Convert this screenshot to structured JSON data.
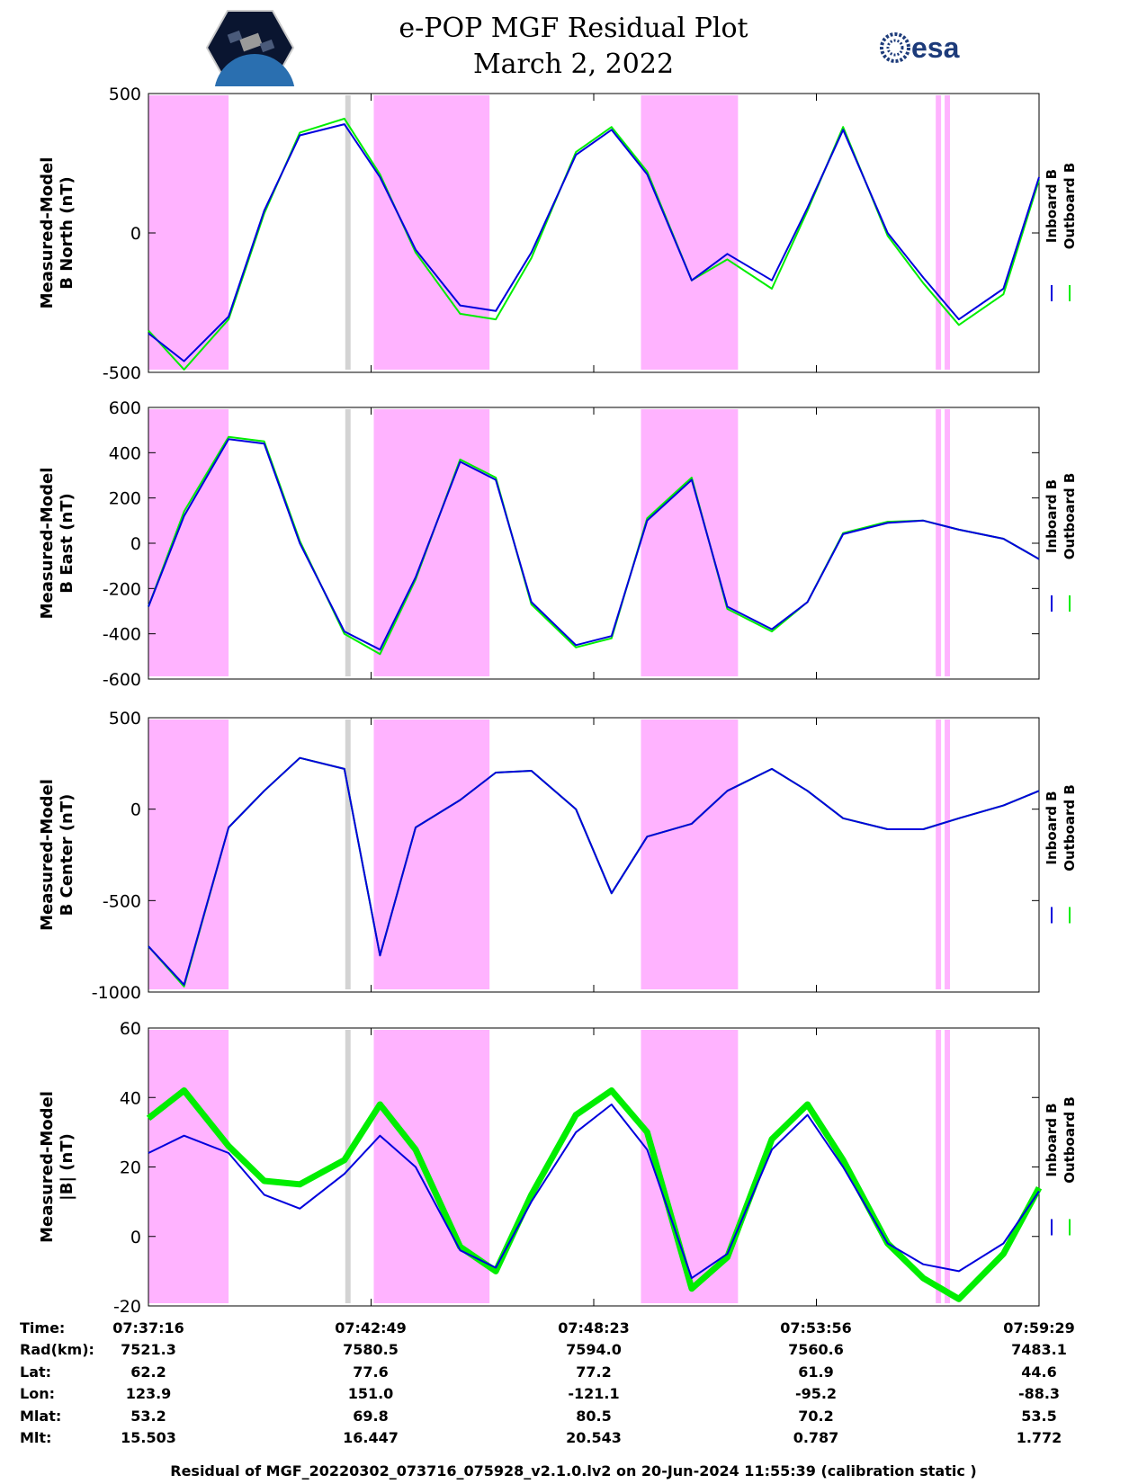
{
  "title": "e-POP MGF Residual Plot",
  "date": "March 2, 2022",
  "logos": {
    "left": "cassiope-mission-patch",
    "right_text": "esa"
  },
  "colors": {
    "inboard": "#0000dd",
    "outboard": "#00ee00",
    "shade_mag": "#ffb3ff",
    "shade_gray": "#d3d3d3"
  },
  "chart_data": [
    {
      "type": "line",
      "ylabel": [
        "Measured-Model",
        "B North (nT)"
      ],
      "ylim": [
        -500,
        500
      ],
      "yticks": [
        -500,
        0,
        500
      ],
      "legend": [
        "Inboard B",
        "Outboard B"
      ],
      "x": [
        0,
        0.04,
        0.09,
        0.13,
        0.17,
        0.22,
        0.26,
        0.3,
        0.35,
        0.39,
        0.43,
        0.48,
        0.52,
        0.56,
        0.61,
        0.65,
        0.7,
        0.74,
        0.78,
        0.83,
        0.87,
        0.91,
        0.96,
        1.0
      ],
      "series": [
        {
          "name": "Inboard B",
          "values": [
            -360,
            -460,
            -300,
            80,
            350,
            390,
            200,
            -60,
            -260,
            -280,
            -70,
            280,
            370,
            210,
            -170,
            -75,
            -170,
            90,
            370,
            0,
            -160,
            -310,
            -200,
            200
          ]
        },
        {
          "name": "Outboard B",
          "values": [
            -350,
            -490,
            -310,
            70,
            360,
            410,
            210,
            -70,
            -290,
            -310,
            -90,
            290,
            380,
            220,
            -170,
            -95,
            -200,
            80,
            380,
            -10,
            -180,
            -330,
            -220,
            190
          ]
        }
      ]
    },
    {
      "type": "line",
      "ylabel": [
        "Measured-Model",
        "B East (nT)"
      ],
      "ylim": [
        -600,
        600
      ],
      "yticks": [
        -600,
        -400,
        -200,
        0,
        200,
        400,
        600
      ],
      "legend": [
        "Inboard B",
        "Outboard B"
      ],
      "x": [
        0,
        0.04,
        0.09,
        0.13,
        0.17,
        0.22,
        0.26,
        0.3,
        0.35,
        0.39,
        0.43,
        0.48,
        0.52,
        0.56,
        0.61,
        0.65,
        0.7,
        0.74,
        0.78,
        0.83,
        0.87,
        0.91,
        0.96,
        1.0
      ],
      "series": [
        {
          "name": "Inboard B",
          "values": [
            -280,
            120,
            460,
            440,
            0,
            -390,
            -470,
            -150,
            360,
            280,
            -260,
            -450,
            -410,
            100,
            280,
            -280,
            -380,
            -260,
            40,
            90,
            100,
            60,
            20,
            -70
          ]
        },
        {
          "name": "Outboard B",
          "values": [
            -280,
            140,
            470,
            450,
            10,
            -400,
            -490,
            -160,
            370,
            290,
            -270,
            -460,
            -420,
            110,
            290,
            -290,
            -390,
            -260,
            45,
            95,
            100,
            60,
            20,
            -70
          ]
        }
      ]
    },
    {
      "type": "line",
      "ylabel": [
        "Measured-Model",
        "B Center (nT)"
      ],
      "ylim": [
        -1000,
        500
      ],
      "yticks": [
        -1000,
        -500,
        0,
        500
      ],
      "legend": [
        "Inboard B",
        "Outboard B"
      ],
      "x": [
        0,
        0.04,
        0.09,
        0.13,
        0.17,
        0.22,
        0.26,
        0.3,
        0.35,
        0.39,
        0.43,
        0.48,
        0.52,
        0.56,
        0.61,
        0.65,
        0.7,
        0.74,
        0.78,
        0.83,
        0.87,
        0.91,
        0.96,
        1.0
      ],
      "series": [
        {
          "name": "Inboard B",
          "values": [
            -750,
            -960,
            -100,
            100,
            280,
            220,
            -800,
            -100,
            50,
            200,
            210,
            0,
            -460,
            -150,
            -80,
            100,
            220,
            100,
            -50,
            -110,
            -110,
            -50,
            20,
            100
          ]
        },
        {
          "name": "Outboard B",
          "values": [
            -750,
            -970,
            -100,
            100,
            280,
            220,
            -800,
            -100,
            50,
            200,
            210,
            0,
            -460,
            -150,
            -80,
            100,
            220,
            100,
            -50,
            -110,
            -110,
            -50,
            20,
            100
          ]
        }
      ]
    },
    {
      "type": "line",
      "ylabel": [
        "Measured-Model",
        "|B| (nT)"
      ],
      "ylim": [
        -20,
        60
      ],
      "yticks": [
        -20,
        0,
        20,
        40,
        60
      ],
      "legend": [
        "Inboard B",
        "Outboard B"
      ],
      "x": [
        0,
        0.04,
        0.09,
        0.13,
        0.17,
        0.22,
        0.26,
        0.3,
        0.35,
        0.39,
        0.43,
        0.48,
        0.52,
        0.56,
        0.61,
        0.65,
        0.7,
        0.74,
        0.78,
        0.83,
        0.87,
        0.91,
        0.96,
        1.0
      ],
      "series": [
        {
          "name": "Inboard B",
          "values": [
            24,
            29,
            24,
            12,
            8,
            18,
            29,
            20,
            -4,
            -9,
            10,
            30,
            38,
            25,
            -12,
            -5,
            25,
            35,
            20,
            -2,
            -8,
            -10,
            -2,
            13
          ]
        },
        {
          "name": "Outboard B",
          "values": [
            34,
            42,
            26,
            16,
            15,
            22,
            38,
            25,
            -3,
            -10,
            12,
            35,
            42,
            30,
            -15,
            -6,
            28,
            38,
            22,
            -2,
            -12,
            -18,
            -5,
            14
          ]
        }
      ]
    }
  ],
  "shaded_regions": {
    "magenta": [
      [
        0.0,
        0.09
      ],
      [
        0.253,
        0.383
      ],
      [
        0.553,
        0.662
      ],
      [
        0.884,
        0.89
      ],
      [
        0.894,
        0.9
      ]
    ],
    "gray": [
      [
        0.221,
        0.227
      ]
    ]
  },
  "x_axis_table": {
    "row_labels": [
      "Time:",
      "Rad(km):",
      "Lat:",
      "Lon:",
      "Mlat:",
      "Mlt:"
    ],
    "columns": [
      [
        "07:37:16",
        "7521.3",
        "62.2",
        "123.9",
        "53.2",
        "15.503"
      ],
      [
        "07:42:49",
        "7580.5",
        "77.6",
        "151.0",
        "69.8",
        "16.447"
      ],
      [
        "07:48:23",
        "7594.0",
        "77.2",
        "-121.1",
        "80.5",
        "20.543"
      ],
      [
        "07:53:56",
        "7560.6",
        "61.9",
        "-95.2",
        "70.2",
        "0.787"
      ],
      [
        "07:59:29",
        "7483.1",
        "44.6",
        "-88.3",
        "53.5",
        "1.772"
      ]
    ]
  },
  "footer": "Residual of MGF_20220302_073716_075928_v2.1.0.lv2 on 20-Jun-2024 11:55:39 (calibration static )"
}
